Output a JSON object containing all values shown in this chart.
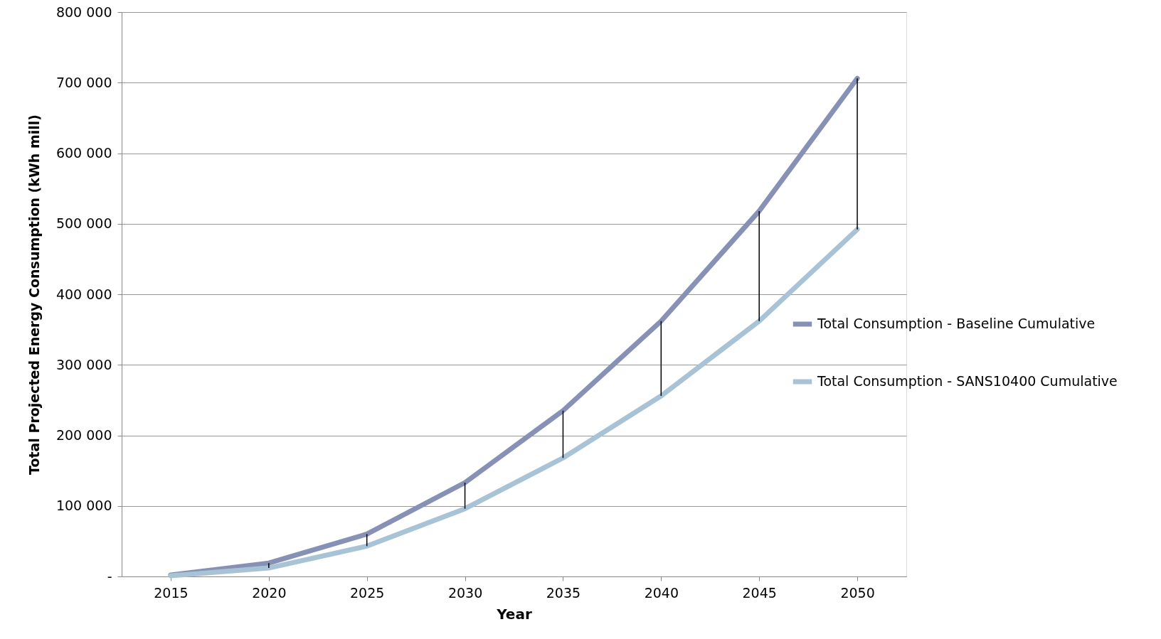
{
  "chart_data": {
    "type": "line",
    "xlabel": "Year",
    "ylabel": "Total Projected Energy Consumption (kWh mill)",
    "categories": [
      "2015",
      "2020",
      "2025",
      "2030",
      "2035",
      "2040",
      "2045",
      "2050"
    ],
    "series": [
      {
        "name": "Total Consumption - Baseline Cumulative",
        "color": "#8791b5",
        "values": [
          2000,
          19000,
          60000,
          133000,
          235000,
          362000,
          518000,
          706000
        ],
        "errors": [
          null,
          [
            12000,
            19000
          ],
          [
            43000,
            60000
          ],
          [
            96000,
            133000
          ],
          [
            168000,
            235000
          ],
          [
            256000,
            362000
          ],
          [
            362000,
            518000
          ],
          [
            492000,
            706000
          ]
        ]
      },
      {
        "name": "Total Consumption - SANS10400 Cumulative",
        "color": "#a9c3d6",
        "values": [
          1000,
          12000,
          43000,
          96000,
          168000,
          256000,
          362000,
          492000
        ]
      }
    ],
    "ylim": [
      0,
      800000
    ],
    "yticks": [
      {
        "value": 0,
        "label": "-"
      },
      {
        "value": 100000,
        "label": "100 000"
      },
      {
        "value": 200000,
        "label": "200 000"
      },
      {
        "value": 300000,
        "label": "300 000"
      },
      {
        "value": 400000,
        "label": "400 000"
      },
      {
        "value": 500000,
        "label": "500 000"
      },
      {
        "value": 600000,
        "label": "600 000"
      },
      {
        "value": 700000,
        "label": "700 000"
      },
      {
        "value": 800000,
        "label": "800 000"
      }
    ],
    "grid": "y",
    "legend": "right",
    "marker": "none",
    "line_style": "solid"
  }
}
